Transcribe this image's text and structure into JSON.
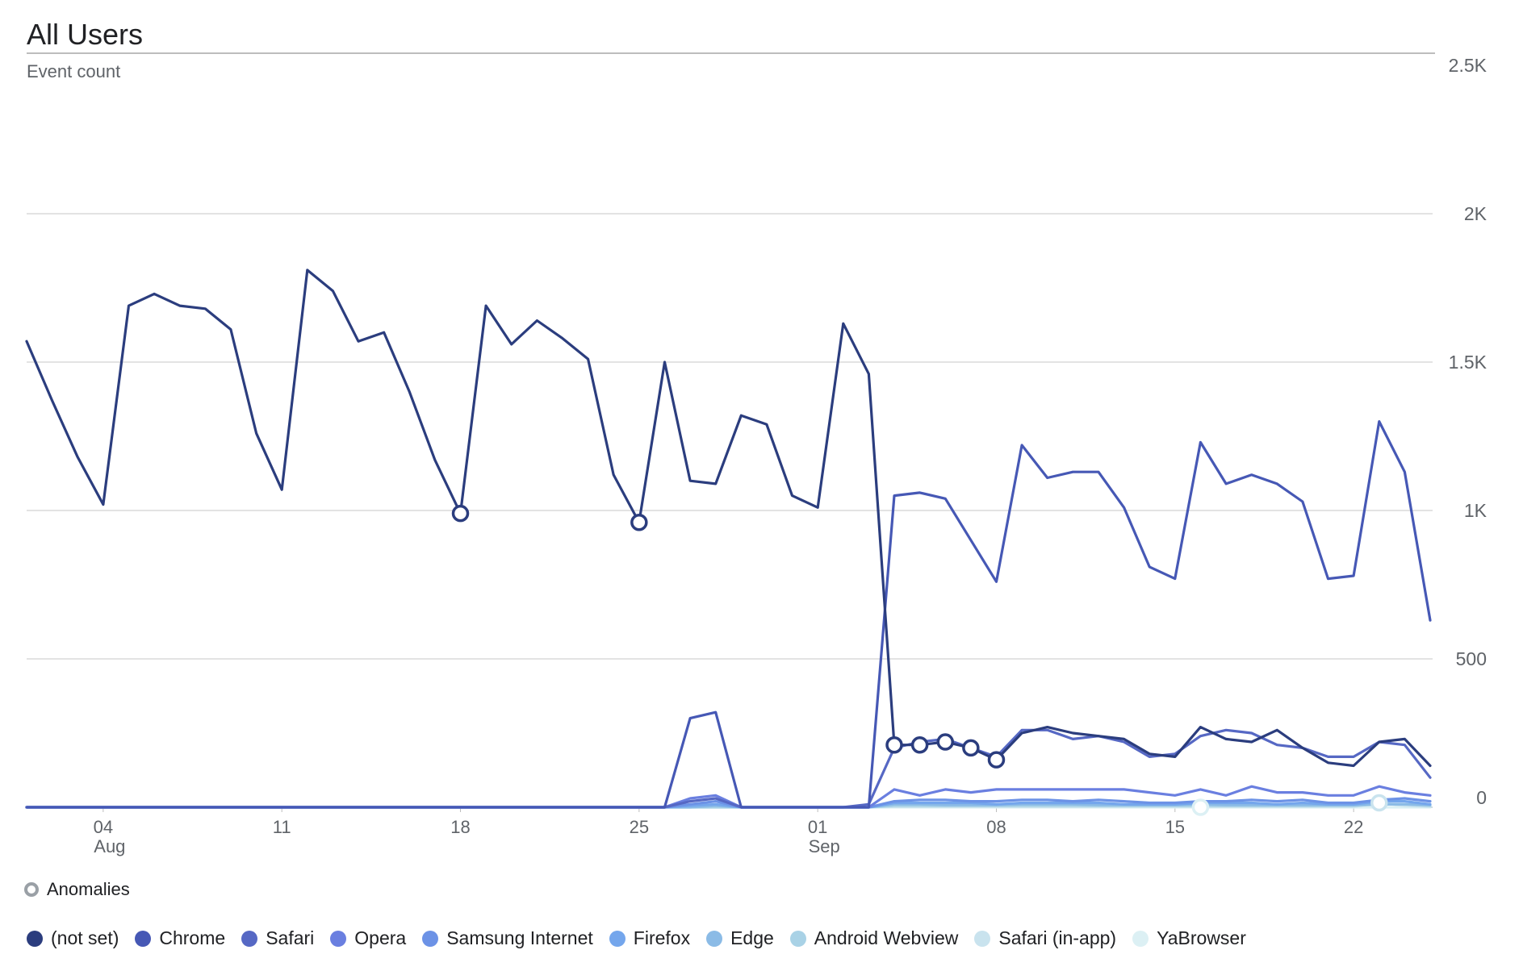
{
  "header": {
    "title": "All Users",
    "metric": "Event count"
  },
  "anomaly_legend": {
    "label": "Anomalies"
  },
  "chart_data": {
    "type": "line",
    "title": "All Users",
    "ylabel": "Event count",
    "ylim": [
      0,
      2500
    ],
    "yticks": [
      "0",
      "500",
      "1K",
      "1.5K",
      "2K",
      "2.5K"
    ],
    "ytick_values": [
      0,
      500,
      1000,
      1500,
      2000,
      2500
    ],
    "xticks": [
      {
        "day": 3,
        "label": "04",
        "sub": "Aug"
      },
      {
        "day": 10,
        "label": "11",
        "sub": ""
      },
      {
        "day": 17,
        "label": "18",
        "sub": ""
      },
      {
        "day": 24,
        "label": "25",
        "sub": ""
      },
      {
        "day": 31,
        "label": "01",
        "sub": "Sep"
      },
      {
        "day": 38,
        "label": "08",
        "sub": ""
      },
      {
        "day": 45,
        "label": "15",
        "sub": ""
      },
      {
        "day": 52,
        "label": "22",
        "sub": ""
      }
    ],
    "x_start": "Aug 1",
    "x_end": "Sep 25",
    "grid": true,
    "legend_position": "bottom",
    "series": [
      {
        "name": "(not set)",
        "color": "#2b3d7e",
        "values": [
          1570,
          1370,
          1180,
          1020,
          1690,
          1730,
          1690,
          1680,
          1610,
          1260,
          1070,
          1810,
          1740,
          1570,
          1600,
          1400,
          1170,
          990,
          1690,
          1560,
          1640,
          1580,
          1510,
          1120,
          960,
          1500,
          1100,
          1090,
          1320,
          1290,
          1050,
          1010,
          1630,
          1460,
          210,
          210,
          220,
          200,
          160,
          250,
          270,
          250,
          240,
          230,
          180,
          170,
          270,
          230,
          220,
          260,
          200,
          150,
          140,
          220,
          230,
          140
        ],
        "anomalies": [
          17,
          24,
          34,
          35,
          36,
          37,
          38
        ]
      },
      {
        "name": "Chrome",
        "color": "#4658b5",
        "values": [
          0,
          0,
          0,
          0,
          0,
          0,
          0,
          0,
          0,
          0,
          0,
          0,
          0,
          0,
          0,
          0,
          0,
          0,
          0,
          0,
          0,
          0,
          0,
          0,
          0,
          0,
          300,
          320,
          0,
          0,
          0,
          0,
          0,
          0,
          1050,
          1060,
          1040,
          900,
          760,
          1220,
          1110,
          1130,
          1130,
          1010,
          810,
          770,
          1230,
          1090,
          1120,
          1090,
          1030,
          770,
          780,
          1300,
          1130,
          630
        ],
        "anomalies": []
      },
      {
        "name": "Safari",
        "color": "#5668c4",
        "values": [
          0,
          0,
          0,
          0,
          0,
          0,
          0,
          0,
          0,
          0,
          0,
          0,
          0,
          0,
          0,
          0,
          0,
          0,
          0,
          0,
          0,
          0,
          0,
          0,
          0,
          0,
          20,
          30,
          0,
          0,
          0,
          0,
          0,
          10,
          200,
          220,
          230,
          200,
          170,
          260,
          260,
          230,
          240,
          220,
          170,
          180,
          240,
          260,
          250,
          210,
          200,
          170,
          170,
          220,
          210,
          100
        ],
        "anomalies": []
      },
      {
        "name": "Opera",
        "color": "#6a7fe0",
        "values": [
          0,
          0,
          0,
          0,
          0,
          0,
          0,
          0,
          0,
          0,
          0,
          0,
          0,
          0,
          0,
          0,
          0,
          0,
          0,
          0,
          0,
          0,
          0,
          0,
          0,
          0,
          30,
          40,
          0,
          0,
          0,
          0,
          0,
          0,
          60,
          40,
          60,
          50,
          60,
          60,
          60,
          60,
          60,
          60,
          50,
          40,
          60,
          40,
          70,
          50,
          50,
          40,
          40,
          70,
          50,
          40
        ],
        "anomalies": []
      },
      {
        "name": "Samsung Internet",
        "color": "#6c92e6",
        "values": [
          0,
          0,
          0,
          0,
          0,
          0,
          0,
          0,
          0,
          0,
          0,
          0,
          0,
          0,
          0,
          0,
          0,
          0,
          0,
          0,
          0,
          0,
          0,
          0,
          0,
          0,
          10,
          20,
          0,
          0,
          0,
          0,
          0,
          0,
          20,
          25,
          25,
          20,
          20,
          25,
          25,
          20,
          25,
          20,
          15,
          15,
          20,
          20,
          25,
          20,
          25,
          15,
          15,
          25,
          30,
          20
        ],
        "anomalies": []
      },
      {
        "name": "Firefox",
        "color": "#74a6ec",
        "values": [
          0,
          0,
          0,
          0,
          0,
          0,
          0,
          0,
          0,
          0,
          0,
          0,
          0,
          0,
          0,
          0,
          0,
          0,
          0,
          0,
          0,
          0,
          0,
          0,
          0,
          0,
          5,
          10,
          0,
          0,
          0,
          0,
          0,
          0,
          15,
          15,
          15,
          15,
          10,
          15,
          15,
          15,
          15,
          10,
          10,
          10,
          15,
          15,
          15,
          10,
          15,
          10,
          10,
          20,
          20,
          10
        ],
        "anomalies": []
      },
      {
        "name": "Edge",
        "color": "#8bbbe6",
        "values": [
          0,
          0,
          0,
          0,
          0,
          0,
          0,
          0,
          0,
          0,
          0,
          0,
          0,
          0,
          0,
          0,
          0,
          0,
          0,
          0,
          0,
          0,
          0,
          0,
          0,
          0,
          0,
          5,
          0,
          0,
          0,
          0,
          0,
          0,
          10,
          10,
          8,
          8,
          8,
          10,
          10,
          10,
          8,
          8,
          8,
          8,
          10,
          8,
          8,
          8,
          8,
          8,
          8,
          10,
          10,
          8
        ],
        "anomalies": []
      },
      {
        "name": "Android Webview",
        "color": "#a9d2e6",
        "values": [
          0,
          0,
          0,
          0,
          0,
          0,
          0,
          0,
          0,
          0,
          0,
          0,
          0,
          0,
          0,
          0,
          0,
          0,
          0,
          0,
          0,
          0,
          0,
          0,
          0,
          0,
          0,
          0,
          0,
          0,
          0,
          0,
          0,
          0,
          5,
          5,
          5,
          5,
          5,
          5,
          5,
          5,
          5,
          5,
          5,
          5,
          5,
          5,
          5,
          5,
          5,
          5,
          5,
          10,
          10,
          5
        ],
        "anomalies": []
      },
      {
        "name": "Safari (in-app)",
        "color": "#c9e3ee",
        "values": [
          0,
          0,
          0,
          0,
          0,
          0,
          0,
          0,
          0,
          0,
          0,
          0,
          0,
          0,
          0,
          0,
          0,
          0,
          0,
          0,
          0,
          0,
          0,
          0,
          0,
          0,
          0,
          0,
          0,
          0,
          0,
          0,
          0,
          0,
          2,
          2,
          2,
          2,
          2,
          2,
          2,
          2,
          2,
          2,
          2,
          2,
          2,
          2,
          2,
          2,
          2,
          2,
          2,
          15,
          5,
          2
        ],
        "anomalies": [
          53
        ]
      },
      {
        "name": "YaBrowser",
        "color": "#dcf0f4",
        "values": [
          0,
          0,
          0,
          0,
          0,
          0,
          0,
          0,
          0,
          0,
          0,
          0,
          0,
          0,
          0,
          0,
          0,
          0,
          0,
          0,
          0,
          0,
          0,
          0,
          0,
          0,
          0,
          0,
          0,
          0,
          0,
          0,
          0,
          0,
          0,
          0,
          0,
          0,
          0,
          0,
          0,
          0,
          0,
          0,
          0,
          0,
          0,
          0,
          0,
          0,
          0,
          0,
          0,
          0,
          0,
          0
        ],
        "anomalies": [
          46
        ]
      }
    ]
  }
}
